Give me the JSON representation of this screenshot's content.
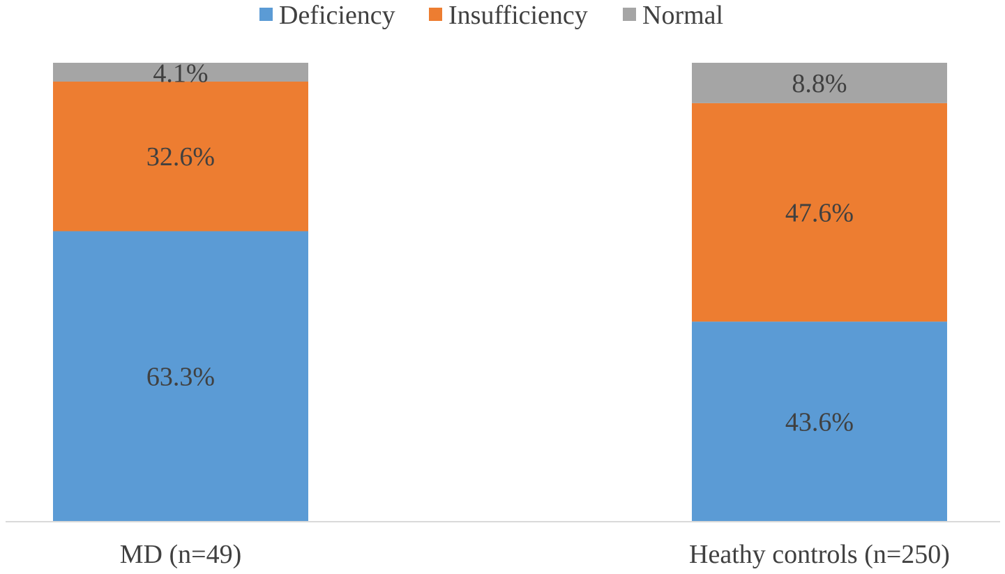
{
  "chart_data": {
    "type": "bar",
    "stacked": true,
    "percent_stacked": true,
    "title": "",
    "xlabel": "",
    "ylabel": "",
    "ylim": [
      0,
      100
    ],
    "grid": false,
    "legend_position": "top",
    "categories": [
      "MD (n=49)",
      "Heathy controls (n=250)"
    ],
    "series": [
      {
        "name": "Deficiency",
        "color": "#5B9BD5",
        "values": [
          63.3,
          43.6
        ],
        "labels": [
          "63.3%",
          "43.6%"
        ]
      },
      {
        "name": "Insufficiency",
        "color": "#ED7D31",
        "values": [
          32.6,
          47.6
        ],
        "labels": [
          "32.6%",
          "47.6%"
        ]
      },
      {
        "name": "Normal",
        "color": "#A5A5A5",
        "values": [
          4.1,
          8.8
        ],
        "labels": [
          "4.1%",
          "8.8%"
        ]
      }
    ]
  }
}
